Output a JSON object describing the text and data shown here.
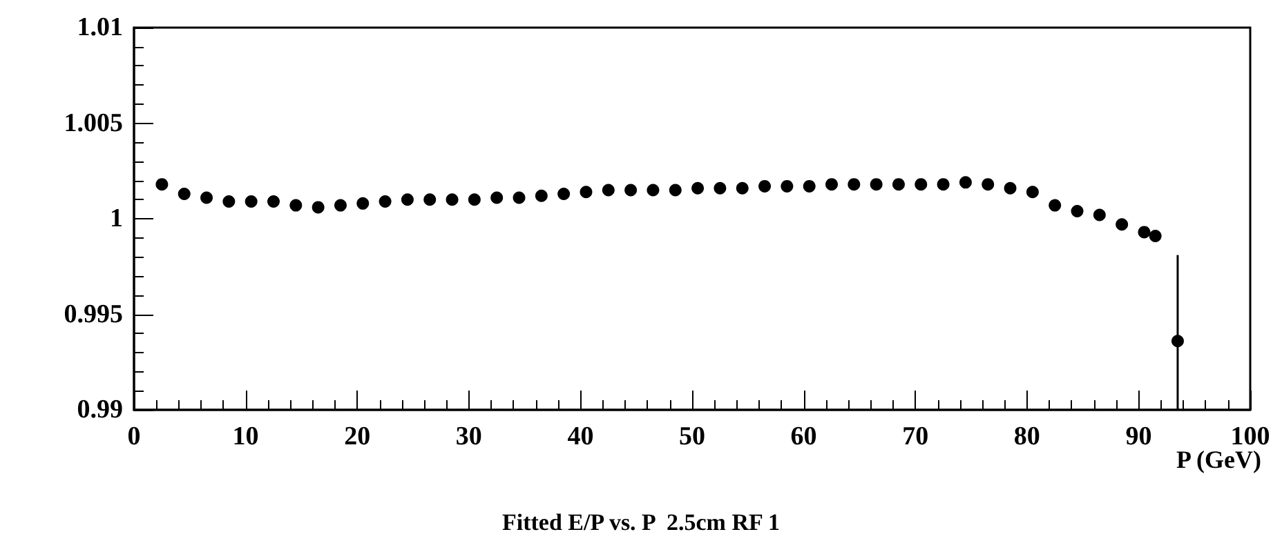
{
  "chart_data": {
    "type": "scatter",
    "title": "Fitted E/P vs. P  2.5cm RF 1",
    "xlabel": "P (GeV)",
    "x": [
      2.5,
      4.5,
      6.5,
      8.5,
      10.5,
      12.5,
      14.5,
      16.5,
      18.5,
      20.5,
      22.5,
      24.5,
      26.5,
      28.5,
      30.5,
      32.5,
      34.5,
      36.5,
      38.5,
      40.5,
      42.5,
      44.5,
      46.5,
      48.5,
      50.5,
      52.5,
      54.5,
      56.5,
      58.5,
      60.5,
      62.5,
      64.5,
      66.5,
      68.5,
      70.5,
      72.5,
      74.5,
      76.5,
      78.5,
      80.5,
      82.5,
      84.5,
      86.5,
      88.5,
      90.5,
      91.5,
      93.5
    ],
    "series": [
      {
        "color": "#000000",
        "values": [
          1.0018,
          1.0013,
          1.0011,
          1.0009,
          1.0009,
          1.0009,
          1.0007,
          1.0006,
          1.0007,
          1.0008,
          1.0009,
          1.001,
          1.001,
          1.001,
          1.001,
          1.0011,
          1.0011,
          1.0012,
          1.0013,
          1.0014,
          1.0015,
          1.0015,
          1.0015,
          1.0015,
          1.0016,
          1.0016,
          1.0016,
          1.0017,
          1.0017,
          1.0017,
          1.0018,
          1.0018,
          1.0018,
          1.0018,
          1.0018,
          1.0018,
          1.0019,
          1.0018,
          1.0016,
          1.0014,
          1.0007,
          1.0004,
          1.0002,
          0.9997,
          0.9993,
          0.9991,
          0.9936
        ],
        "errors": [
          null,
          null,
          null,
          null,
          null,
          null,
          null,
          null,
          null,
          null,
          null,
          null,
          null,
          null,
          null,
          null,
          null,
          null,
          null,
          null,
          null,
          null,
          null,
          null,
          null,
          null,
          null,
          null,
          null,
          null,
          null,
          null,
          null,
          null,
          null,
          null,
          null,
          null,
          null,
          null,
          null,
          null,
          null,
          null,
          null,
          null,
          [
            0.99,
            0.9981
          ]
        ]
      }
    ],
    "marker": "circle",
    "xlim": [
      0,
      100
    ],
    "xticks": [
      0,
      10,
      20,
      30,
      40,
      50,
      60,
      70,
      80,
      90,
      100
    ],
    "ylim": [
      0.99,
      1.01
    ],
    "yticks": [
      0.99,
      0.995,
      1,
      1.005,
      1.01
    ],
    "grid": false
  }
}
